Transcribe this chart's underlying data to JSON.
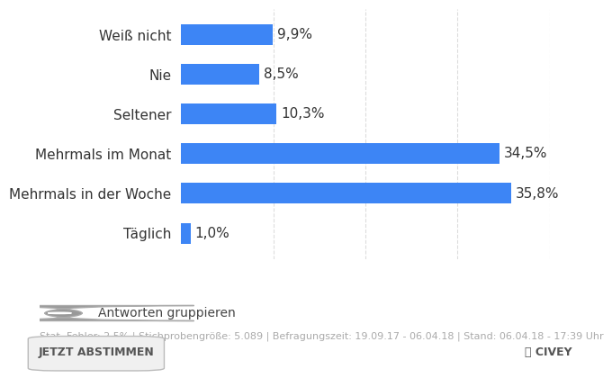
{
  "categories": [
    "Täglich",
    "Mehrmals in der Woche",
    "Mehrmals im Monat",
    "Seltener",
    "Nie",
    "Weiß nicht"
  ],
  "values": [
    9.9,
    8.5,
    10.3,
    34.5,
    35.8,
    1.0
  ],
  "labels": [
    "9,9%",
    "8,5%",
    "10,3%",
    "34,5%",
    "35,8%",
    "1,0%"
  ],
  "bar_color": "#3d85f5",
  "bar_height": 0.52,
  "xlim": [
    0,
    40
  ],
  "background_color": "#ffffff",
  "text_color": "#555555",
  "label_color": "#333333",
  "grid_color": "#dddddd",
  "footer_text": "Stat. Fehler: 2,5% | Stichprobengröße: 5.089 | Befragungszeit: 19.09.17 - 06.04.18 | Stand: 06.04.18 - 17:39 Uhr",
  "toggle_text": "Antworten gruppieren",
  "button_text": "JETZT ABSTIMMEN",
  "civey_text": "CIVEY",
  "font_size_labels": 11,
  "font_size_values": 11,
  "font_size_footer": 8,
  "font_size_toggle": 10,
  "font_size_button": 9
}
